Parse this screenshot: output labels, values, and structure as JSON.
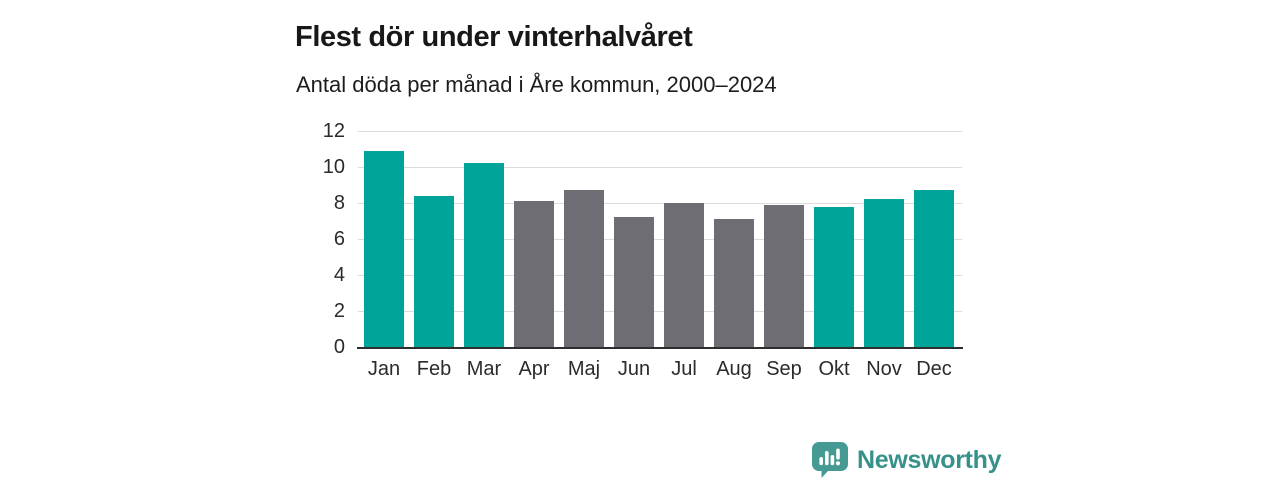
{
  "page": {
    "background": "#ffffff"
  },
  "chart_data": {
    "type": "bar",
    "title": "Flest dör under vinterhalvåret",
    "subtitle": "Antal döda per månad i Åre kommun, 2000–2024",
    "categories": [
      "Jan",
      "Feb",
      "Mar",
      "Apr",
      "Maj",
      "Jun",
      "Jul",
      "Aug",
      "Sep",
      "Okt",
      "Nov",
      "Dec"
    ],
    "values": [
      10.9,
      8.4,
      10.2,
      8.1,
      8.7,
      7.2,
      8.0,
      7.1,
      7.9,
      7.8,
      8.2,
      8.7
    ],
    "highlighted_categories": [
      "Jan",
      "Feb",
      "Mar",
      "Okt",
      "Nov",
      "Dec"
    ],
    "bar_color_highlight": "#00a499",
    "bar_color_base": "#6e6d74",
    "xlabel": "",
    "ylabel": "",
    "ylim": [
      0,
      12
    ],
    "yticks": [
      0,
      2,
      4,
      6,
      8,
      10,
      12
    ],
    "grid": "horizontal",
    "legend": "none"
  },
  "logo": {
    "brand": "Newsworthy",
    "color": "#37918b",
    "icon_color": "#459a93",
    "icon": "speech-bubble-bar-chart-icon"
  }
}
